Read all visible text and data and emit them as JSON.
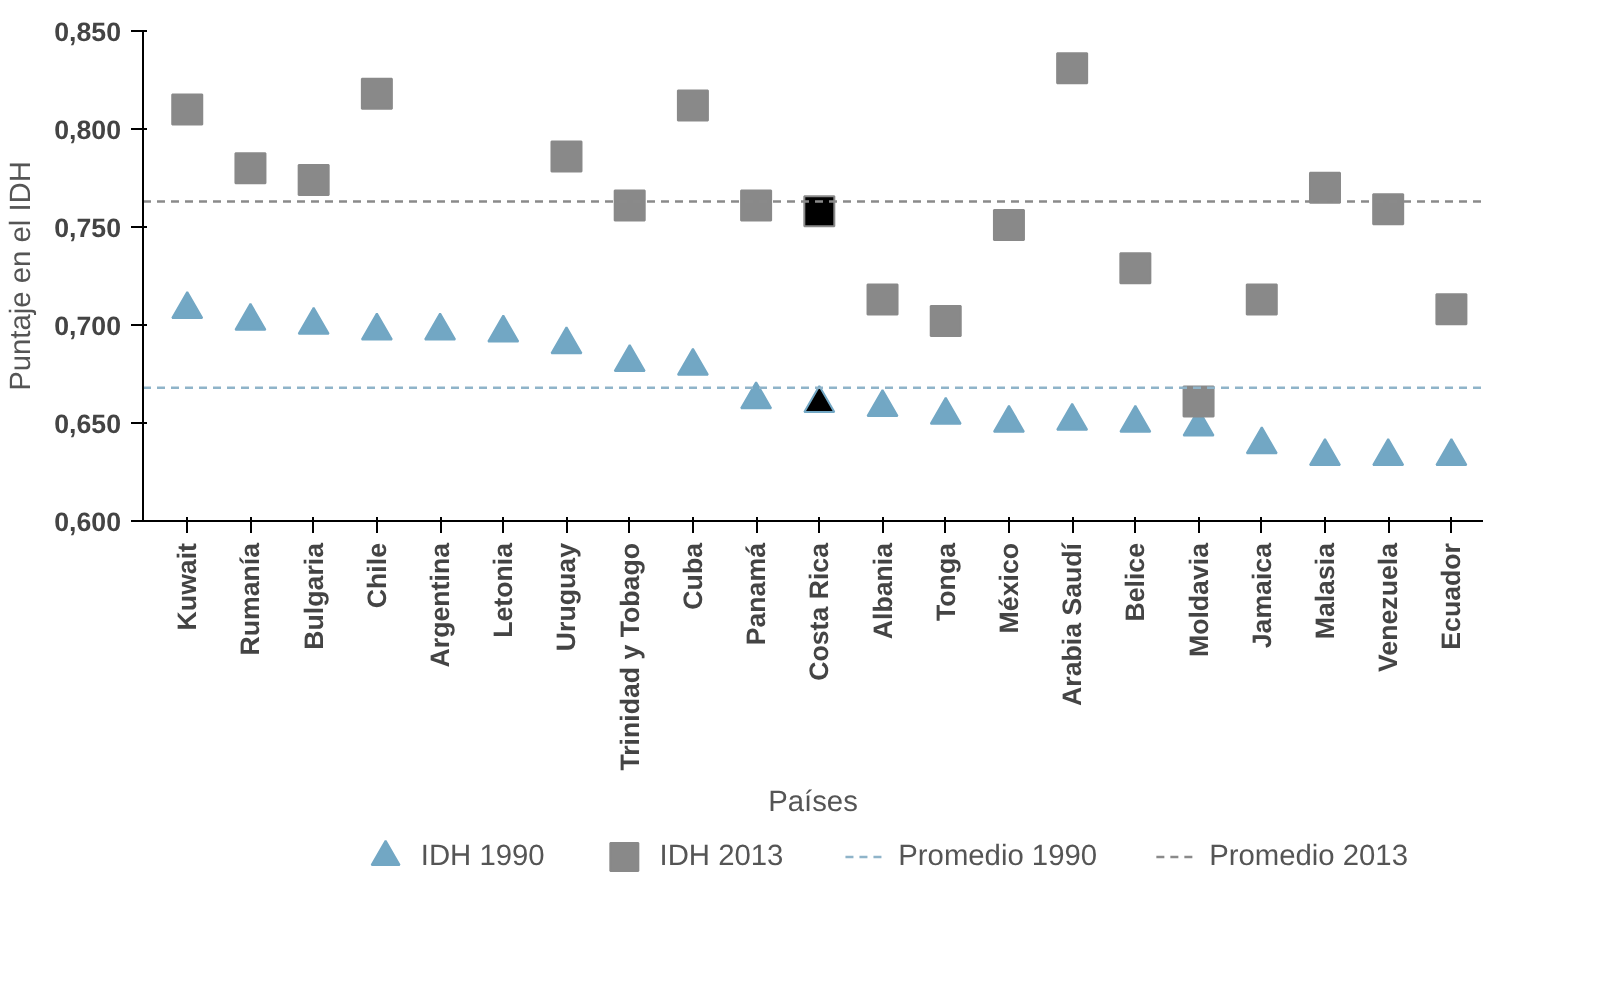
{
  "chart_data": {
    "type": "scatter",
    "xlabel": "Países",
    "ylabel": "Puntaje en el IDH",
    "categories": [
      "Kuwait",
      "Rumanía",
      "Bulgaria",
      "Chile",
      "Argentina",
      "Letonia",
      "Uruguay",
      "Trinidad y Tobago",
      "Cuba",
      "Panamá",
      "Costa Rica",
      "Albania",
      "Tonga",
      "México",
      "Arabia Saudí",
      "Belice",
      "Moldavia",
      "Jamaica",
      "Malasia",
      "Venezuela",
      "Ecuador"
    ],
    "series": [
      {
        "name": "IDH 1990",
        "color": "#72a7c4",
        "marker": "triangle",
        "colors": [
          "#72a7c4",
          "#72a7c4",
          "#72a7c4",
          "#72a7c4",
          "#72a7c4",
          "#72a7c4",
          "#72a7c4",
          "#72a7c4",
          "#72a7c4",
          "#72a7c4",
          "#000000",
          "#72a7c4",
          "#72a7c4",
          "#72a7c4",
          "#72a7c4",
          "#72a7c4",
          "#72a7c4",
          "#72a7c4",
          "#72a7c4",
          "#72a7c4",
          "#72a7c4"
        ],
        "values": [
          0.708,
          0.702,
          0.7,
          0.697,
          0.697,
          0.696,
          0.69,
          0.681,
          0.679,
          0.662,
          0.66,
          0.658,
          0.654,
          0.65,
          0.651,
          0.65,
          0.648,
          0.639,
          0.633,
          0.633,
          0.633
        ]
      },
      {
        "name": "IDH 2013",
        "color": "#898989",
        "marker": "square",
        "colors": [
          "#898989",
          "#898989",
          "#898989",
          "#898989",
          "#898989",
          "#898989",
          "#898989",
          "#898989",
          "#898989",
          "#898989",
          "#000000",
          "#898989",
          "#898989",
          "#898989",
          "#898989",
          "#898989",
          "#898989",
          "#898989",
          "#898989",
          "#898989",
          "#898989"
        ],
        "values": [
          0.81,
          0.78,
          0.774,
          0.818,
          null,
          null,
          0.786,
          0.761,
          0.812,
          0.761,
          0.758,
          0.713,
          0.702,
          0.751,
          0.831,
          0.729,
          0.661,
          0.713,
          0.77,
          0.759,
          0.708
        ]
      }
    ],
    "ref_lines": [
      {
        "axis": "y",
        "value": 0.668,
        "label": "Promedio 1990",
        "color": "#8fb4c9",
        "line_style": "dashed"
      },
      {
        "axis": "y",
        "value": 0.763,
        "label": "Promedio 2013",
        "color": "#8a8a8a",
        "line_style": "dashed"
      }
    ],
    "ylim": [
      0.6,
      0.85
    ],
    "yticks": [
      {
        "value": 0.6,
        "label": "0,600"
      },
      {
        "value": 0.65,
        "label": "0,650"
      },
      {
        "value": 0.7,
        "label": "0,700"
      },
      {
        "value": 0.75,
        "label": "0,750"
      },
      {
        "value": 0.8,
        "label": "0,800"
      },
      {
        "value": 0.85,
        "label": "0,850"
      }
    ],
    "grid": false,
    "legend": "bottom"
  }
}
